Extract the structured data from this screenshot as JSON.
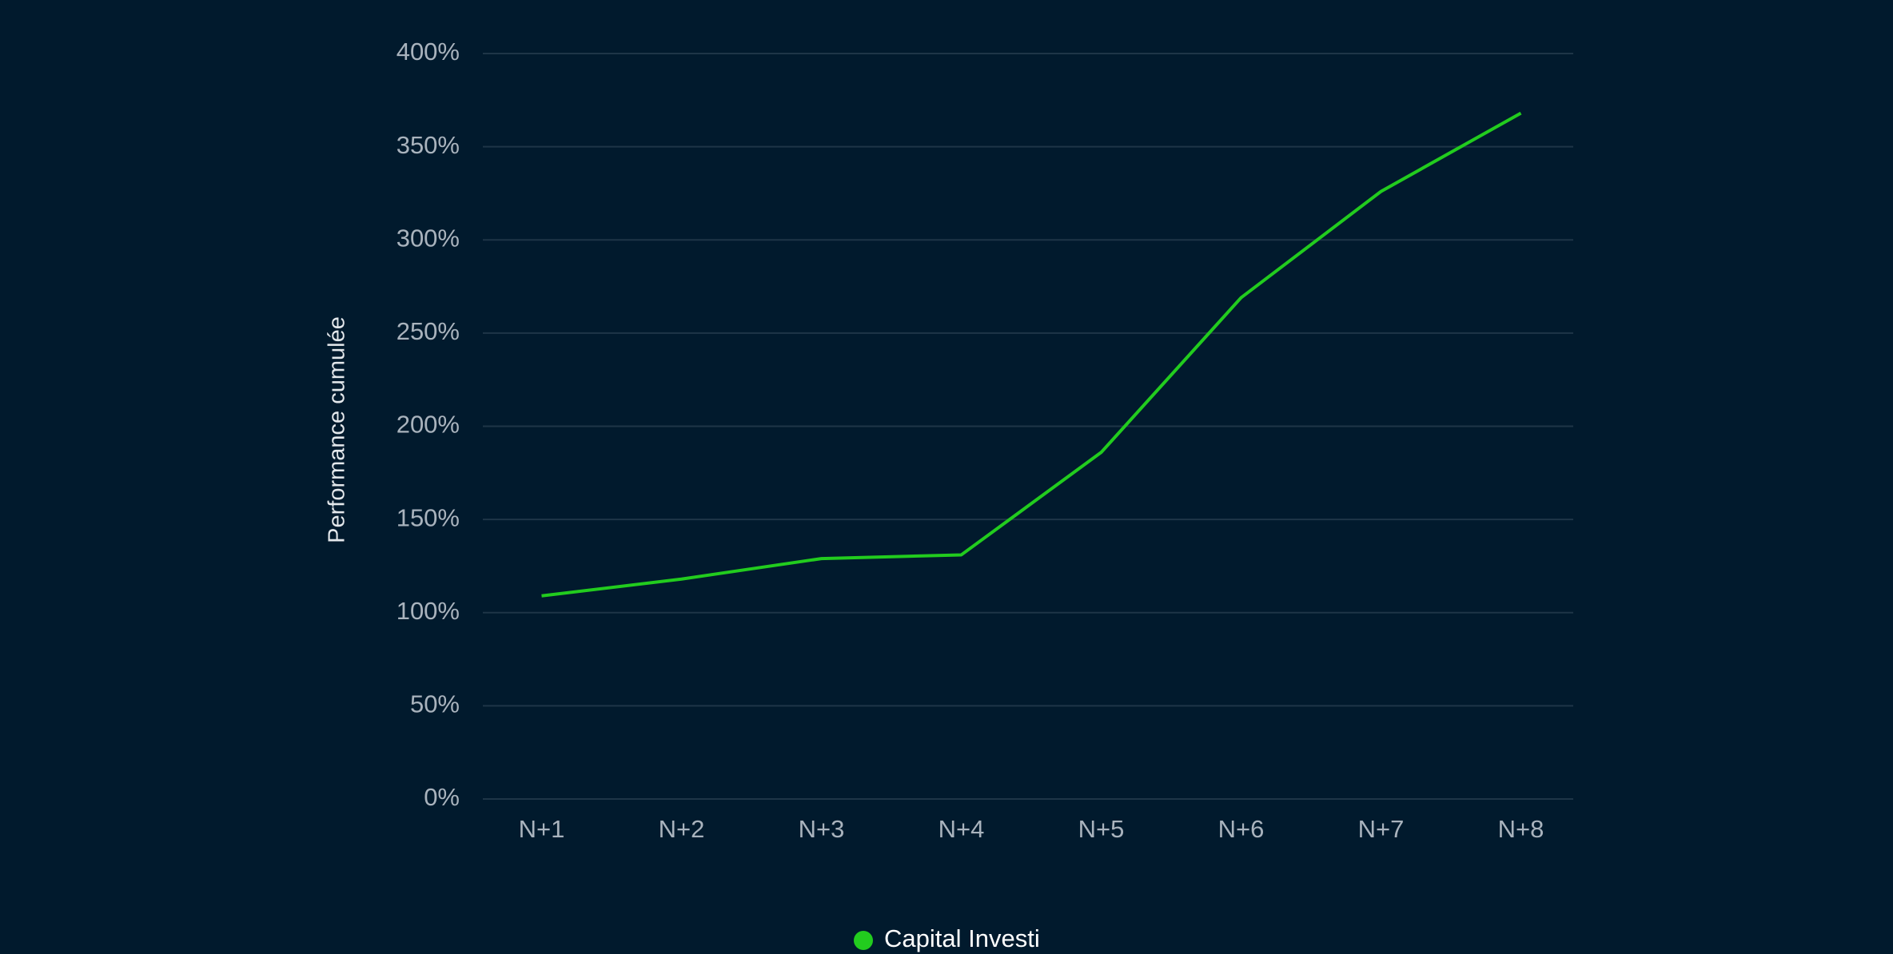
{
  "chart_data": {
    "type": "line",
    "y_label": "Performance cumulée",
    "categories": [
      "N+1",
      "N+2",
      "N+3",
      "N+4",
      "N+5",
      "N+6",
      "N+7",
      "N+8"
    ],
    "series": [
      {
        "name": "Capital Investi",
        "color": "#22cc1e",
        "values": [
          109,
          118,
          129,
          131,
          186,
          269,
          326,
          368
        ]
      }
    ],
    "ylim": [
      0,
      400
    ],
    "yticks": [
      {
        "value": 0,
        "label": "0%"
      },
      {
        "value": 50,
        "label": "50%"
      },
      {
        "value": 100,
        "label": "100%"
      },
      {
        "value": 150,
        "label": "150%"
      },
      {
        "value": 200,
        "label": "200%"
      },
      {
        "value": 250,
        "label": "250%"
      },
      {
        "value": 300,
        "label": "300%"
      },
      {
        "value": 350,
        "label": "350%"
      },
      {
        "value": 400,
        "label": "400%"
      }
    ],
    "grid": true,
    "legend": "bottom"
  }
}
